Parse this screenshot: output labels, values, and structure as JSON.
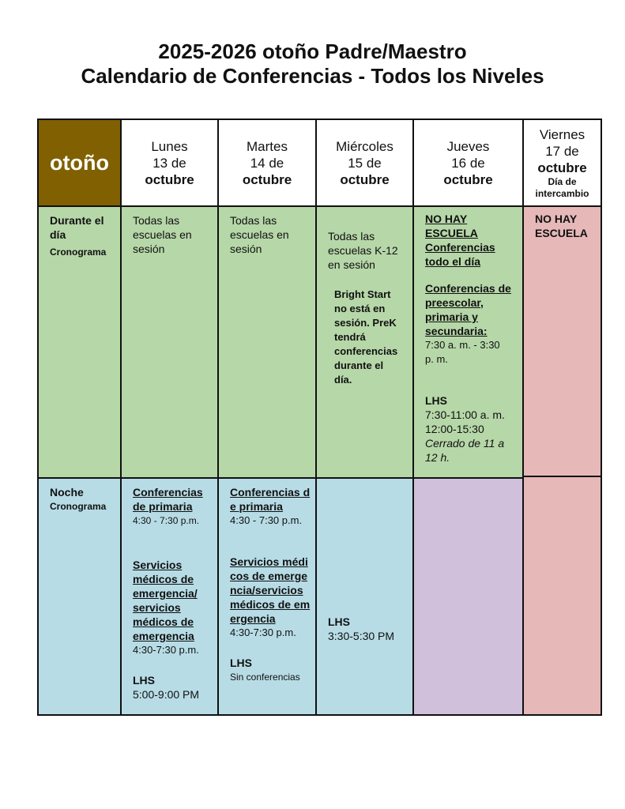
{
  "title": {
    "line1": "2025-2026 otoño Padre/Maestro",
    "line2": "Calendario de Conferencias - Todos los Niveles"
  },
  "header": {
    "corner": "otoño",
    "days": [
      {
        "day": "Lunes",
        "date": "13 de",
        "month": "octubre"
      },
      {
        "day": "Martes",
        "date": "14 de",
        "month": "octubre"
      },
      {
        "day": "Miércoles",
        "date": "15 de",
        "month": "octubre"
      },
      {
        "day": "Jueves",
        "date": "16 de",
        "month": "octubre"
      },
      {
        "day": "Viernes",
        "date": "17 de",
        "month": "octubre",
        "note": "Día de intercambio"
      }
    ]
  },
  "day_row": {
    "label": "Durante el día",
    "sub": "Cronograma",
    "mon": "Todas las escuelas en sesión",
    "tue": "Todas las escuelas en sesión",
    "wed": {
      "main": "Todas las escuelas K-12 en sesión",
      "note": "Bright Start no está en sesión. PreK tendrá conferencias durante el día."
    },
    "thu": {
      "h1": "NO HAY ESCUELA Conferencias todo el día",
      "h2": "Conferencias de preescolar, primaria y secundaria:",
      "t2": "7:30 a. m. - 3:30 p. m.",
      "h3": "LHS",
      "t3a": "7:30-11:00 a. m.",
      "t3b": "12:00-15:30",
      "t3c": "Cerrado de 11 a 12 h."
    },
    "fri": "NO HAY ESCUELA"
  },
  "night_row": {
    "label": "Noche",
    "sub": "Cronograma",
    "mon": {
      "h1": "Conferencias de primaria",
      "t1": "4:30 - 7:30 p.m.",
      "h2": "Servicios médicos de emergencia/ servicios médicos de emergencia",
      "t2": "4:30-7:30 p.m.",
      "h3": "LHS",
      "t3": "5:00-9:00 PM"
    },
    "tue": {
      "h1": "Conferencias de primaria",
      "t1": "4:30 - 7:30 p.m.",
      "h2": "Servicios médicos de emergencia/servicios médicos de emergencia",
      "t2": "4:30-7:30 p.m.",
      "h3": "LHS",
      "t3": "Sin conferencias"
    },
    "wed": {
      "h": "LHS",
      "t": "3:30-5:30 PM"
    }
  },
  "colors": {
    "corner": "#806000",
    "day": "#b6d7a8",
    "night": "#b7dce6",
    "thu_night": "#d0c0dc",
    "friday": "#e6b8b8"
  }
}
